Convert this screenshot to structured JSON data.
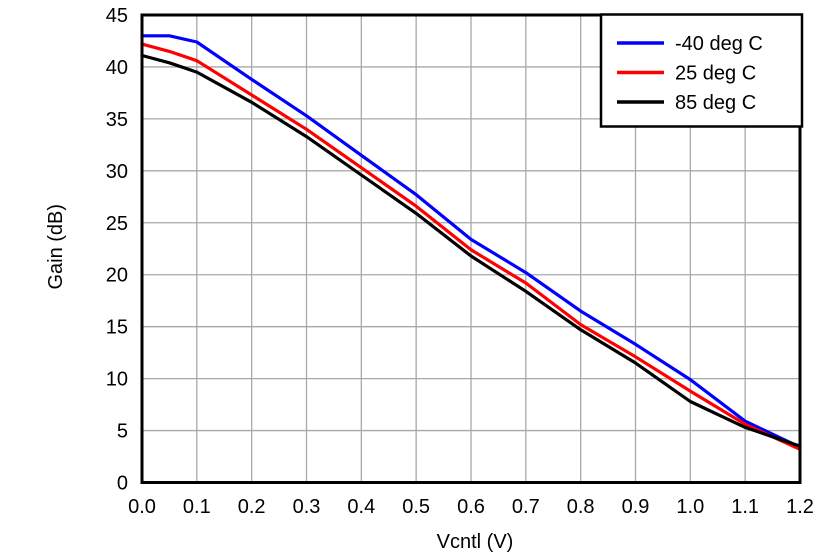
{
  "figure": {
    "background": "#ffffff",
    "axis_color": "#000000",
    "grid_color": "#a8a8a8",
    "legend_border_color": "#000000",
    "legend_background": "#ffffff"
  },
  "chart_data": {
    "type": "line",
    "title": "",
    "xlabel": "Vcntl (V)",
    "ylabel": "Gain (dB)",
    "xlim": [
      0.0,
      1.2
    ],
    "ylim": [
      0,
      45
    ],
    "grid": true,
    "legend_position": "top-right",
    "x_ticks": [
      0.0,
      0.1,
      0.2,
      0.3,
      0.4,
      0.5,
      0.6,
      0.7,
      0.8,
      0.9,
      1.0,
      1.1,
      1.2
    ],
    "x_tick_labels": [
      "0.0",
      "0.1",
      "0.2",
      "0.3",
      "0.4",
      "0.5",
      "0.6",
      "0.7",
      "0.8",
      "0.9",
      "1.0",
      "1.1",
      "1.2"
    ],
    "y_ticks": [
      0,
      5,
      10,
      15,
      20,
      25,
      30,
      35,
      40,
      45
    ],
    "y_tick_labels": [
      "0",
      "5",
      "10",
      "15",
      "20",
      "25",
      "30",
      "35",
      "40",
      "45"
    ],
    "x": [
      0.0,
      0.05,
      0.1,
      0.2,
      0.3,
      0.4,
      0.5,
      0.6,
      0.7,
      0.8,
      0.9,
      1.0,
      1.1,
      1.2
    ],
    "series": [
      {
        "name": "-40 deg C",
        "color": "#0000ff",
        "values": [
          43.0,
          43.0,
          42.4,
          38.8,
          35.3,
          31.5,
          27.7,
          23.4,
          20.2,
          16.5,
          13.3,
          9.9,
          5.9,
          3.4
        ]
      },
      {
        "name": "25 deg C",
        "color": "#ff0000",
        "values": [
          42.2,
          41.5,
          40.6,
          37.3,
          34.0,
          30.3,
          26.6,
          22.4,
          19.2,
          15.2,
          12.1,
          8.8,
          5.6,
          3.2
        ]
      },
      {
        "name": "85 deg C",
        "color": "#000000",
        "values": [
          41.1,
          40.4,
          39.5,
          36.6,
          33.3,
          29.6,
          25.9,
          21.8,
          18.4,
          14.7,
          11.5,
          7.8,
          5.3,
          3.5
        ]
      }
    ]
  }
}
